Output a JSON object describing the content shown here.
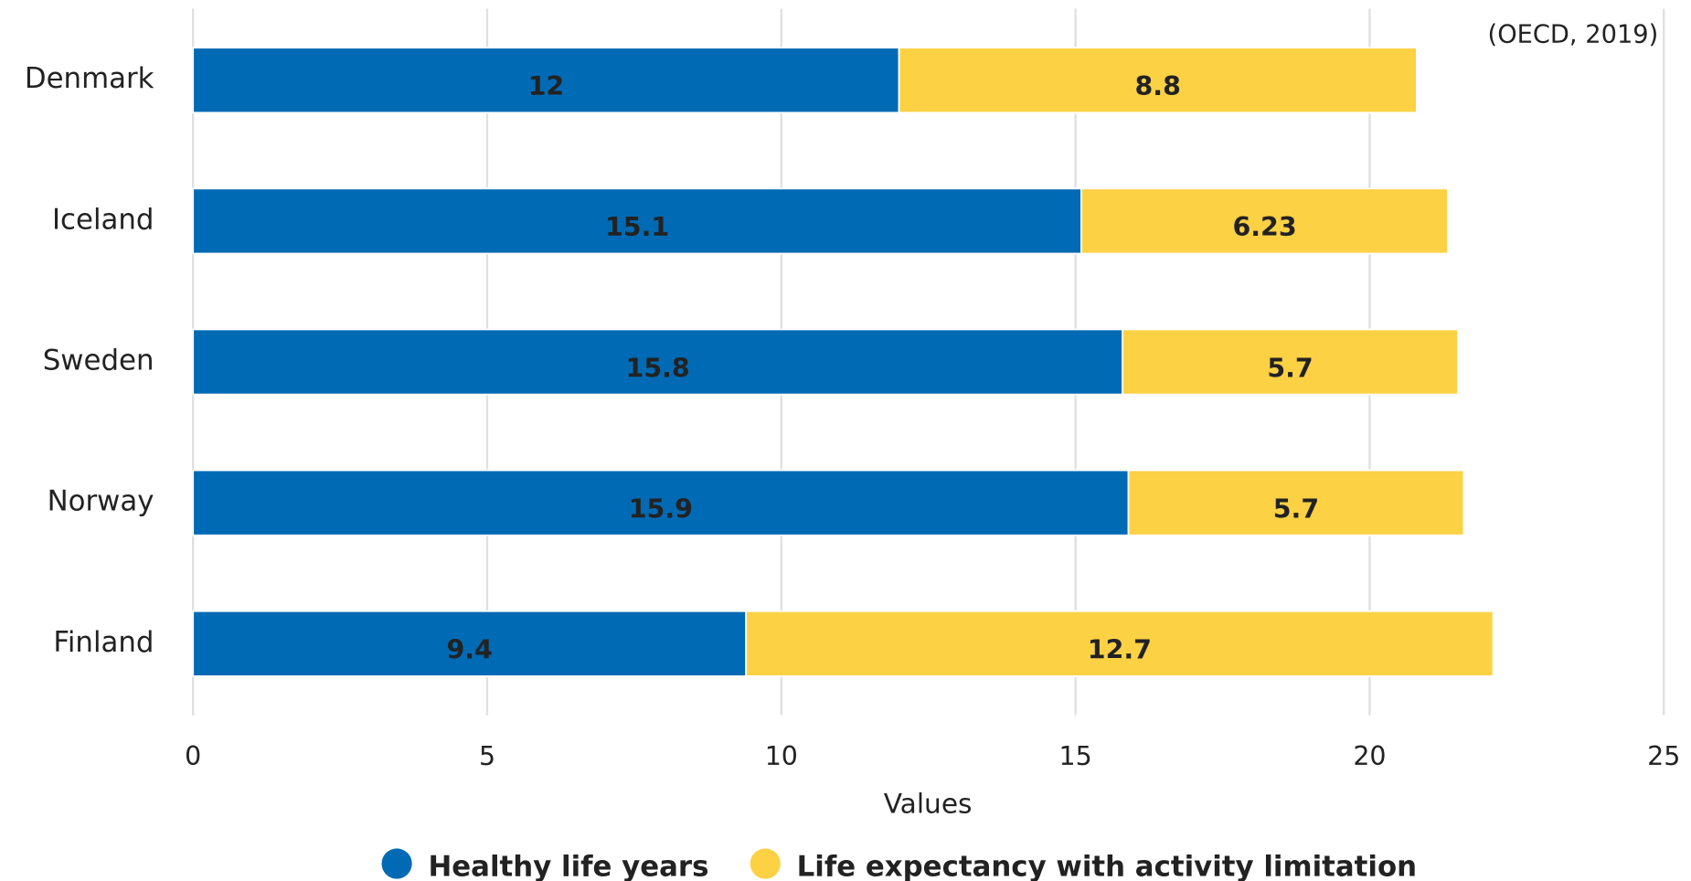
{
  "chart_data": {
    "type": "stacked-bar-horizontal",
    "annotation": "(OECD, 2019)",
    "categories": [
      "Denmark",
      "Iceland",
      "Sweden",
      "Norway",
      "Finland"
    ],
    "series": [
      {
        "name": "Healthy life years",
        "color": "#006ab4",
        "values": [
          12,
          15.1,
          15.8,
          15.9,
          9.4
        ]
      },
      {
        "name": "Life expectancy with activity limitation",
        "color": "#fcd144",
        "values": [
          8.8,
          6.23,
          5.7,
          5.7,
          12.7
        ]
      }
    ],
    "x_label": "Values",
    "xlim": [
      0,
      25
    ],
    "xticks": [
      0,
      5,
      10,
      15,
      20,
      25
    ],
    "grid": true,
    "legend": "bottom"
  }
}
